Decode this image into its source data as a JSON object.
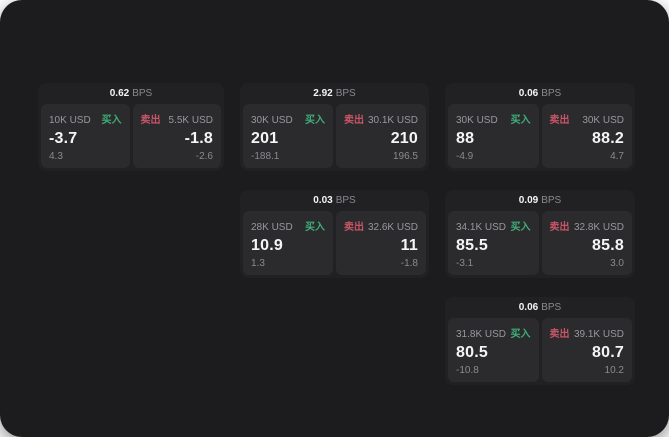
{
  "theme": {
    "canvas_bg": "#1c1c1e",
    "card_bg": "#212124",
    "cell_bg": "#2b2b2e",
    "accent_green": "#3fae78",
    "accent_red": "#c75566"
  },
  "labels": {
    "bps_unit": "BPS",
    "buy": "买入",
    "sell": "卖出"
  },
  "cards": [
    {
      "row": 1,
      "col": 1,
      "bps": "0.62",
      "buy": {
        "amount": "10K USD",
        "price": "-3.7",
        "delta": "4.3"
      },
      "sell": {
        "amount": "5.5K USD",
        "price": "-1.8",
        "delta": "-2.6"
      }
    },
    {
      "row": 1,
      "col": 2,
      "bps": "2.92",
      "buy": {
        "amount": "30K USD",
        "price": "201",
        "delta": "-188.1"
      },
      "sell": {
        "amount": "30.1K USD",
        "price": "210",
        "delta": "196.5"
      }
    },
    {
      "row": 1,
      "col": 3,
      "bps": "0.06",
      "buy": {
        "amount": "30K USD",
        "price": "88",
        "delta": "-4.9"
      },
      "sell": {
        "amount": "30K USD",
        "price": "88.2",
        "delta": "4.7"
      }
    },
    {
      "row": 2,
      "col": 2,
      "bps": "0.03",
      "buy": {
        "amount": "28K USD",
        "price": "10.9",
        "delta": "1.3"
      },
      "sell": {
        "amount": "32.6K USD",
        "price": "11",
        "delta": "-1.8"
      }
    },
    {
      "row": 2,
      "col": 3,
      "bps": "0.09",
      "buy": {
        "amount": "34.1K USD",
        "price": "85.5",
        "delta": "-3.1"
      },
      "sell": {
        "amount": "32.8K USD",
        "price": "85.8",
        "delta": "3.0"
      }
    },
    {
      "row": 3,
      "col": 3,
      "bps": "0.06",
      "buy": {
        "amount": "31.8K USD",
        "price": "80.5",
        "delta": "-10.8"
      },
      "sell": {
        "amount": "39.1K USD",
        "price": "80.7",
        "delta": "10.2"
      }
    }
  ]
}
